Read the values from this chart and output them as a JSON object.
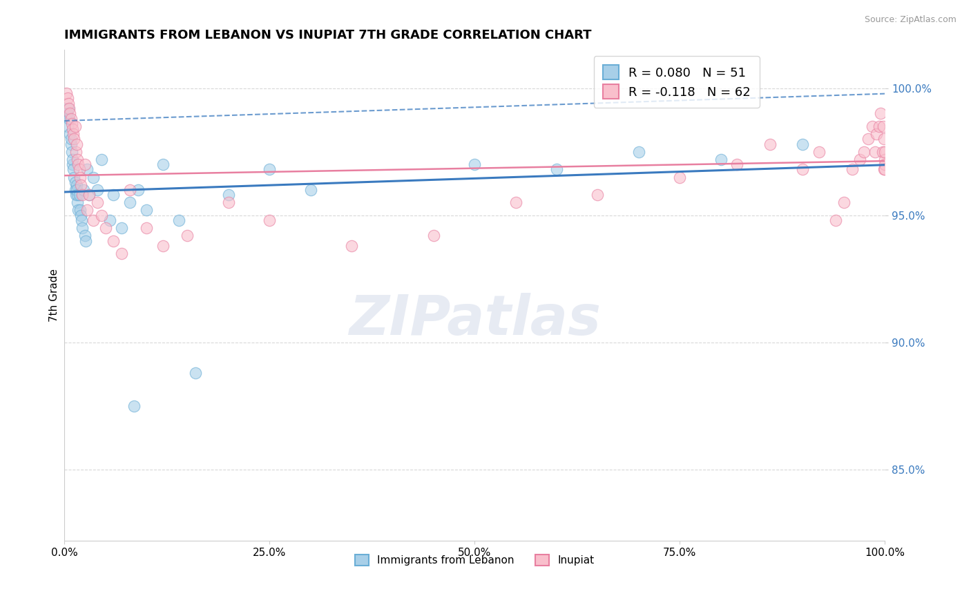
{
  "title": "IMMIGRANTS FROM LEBANON VS INUPIAT 7TH GRADE CORRELATION CHART",
  "source": "Source: ZipAtlas.com",
  "ylabel": "7th Grade",
  "xlim": [
    0.0,
    1.0
  ],
  "ylim": [
    0.822,
    1.015
  ],
  "yticks": [
    0.85,
    0.9,
    0.95,
    1.0
  ],
  "color_blue": "#a8cfe8",
  "color_blue_edge": "#6aaed6",
  "color_blue_line": "#3a7abf",
  "color_pink": "#f9bfcc",
  "color_pink_edge": "#e87fa0",
  "color_pink_line": "#e87fa0",
  "legend_label_blue": "Immigrants from Lebanon",
  "legend_label_pink": "Inupiat",
  "r_blue": "0.080",
  "n_blue": "51",
  "r_pink": "-0.118",
  "n_pink": "62",
  "watermark_text": "ZIPatlas",
  "blue_x": [
    0.003,
    0.004,
    0.005,
    0.006,
    0.007,
    0.008,
    0.008,
    0.009,
    0.01,
    0.01,
    0.011,
    0.012,
    0.013,
    0.013,
    0.014,
    0.015,
    0.015,
    0.016,
    0.016,
    0.017,
    0.018,
    0.019,
    0.02,
    0.021,
    0.022,
    0.023,
    0.025,
    0.026,
    0.028,
    0.03,
    0.035,
    0.04,
    0.045,
    0.055,
    0.06,
    0.07,
    0.08,
    0.085,
    0.09,
    0.1,
    0.12,
    0.14,
    0.16,
    0.2,
    0.25,
    0.3,
    0.5,
    0.6,
    0.7,
    0.8,
    0.9
  ],
  "blue_y": [
    0.99,
    0.985,
    0.992,
    0.988,
    0.982,
    0.978,
    0.98,
    0.975,
    0.97,
    0.972,
    0.968,
    0.965,
    0.963,
    0.96,
    0.958,
    0.962,
    0.96,
    0.955,
    0.958,
    0.952,
    0.958,
    0.952,
    0.95,
    0.948,
    0.945,
    0.96,
    0.942,
    0.94,
    0.968,
    0.958,
    0.965,
    0.96,
    0.972,
    0.948,
    0.958,
    0.945,
    0.955,
    0.875,
    0.96,
    0.952,
    0.97,
    0.948,
    0.888,
    0.958,
    0.968,
    0.96,
    0.97,
    0.968,
    0.975,
    0.972,
    0.978
  ],
  "pink_x": [
    0.002,
    0.004,
    0.005,
    0.006,
    0.007,
    0.008,
    0.009,
    0.01,
    0.011,
    0.012,
    0.013,
    0.014,
    0.015,
    0.016,
    0.017,
    0.018,
    0.019,
    0.02,
    0.022,
    0.025,
    0.028,
    0.03,
    0.035,
    0.04,
    0.045,
    0.05,
    0.06,
    0.07,
    0.08,
    0.1,
    0.12,
    0.15,
    0.2,
    0.25,
    0.35,
    0.45,
    0.55,
    0.65,
    0.75,
    0.82,
    0.86,
    0.9,
    0.92,
    0.94,
    0.95,
    0.96,
    0.97,
    0.975,
    0.98,
    0.985,
    0.988,
    0.99,
    0.993,
    0.995,
    0.997,
    0.998,
    0.999,
    0.9993,
    0.9996,
    0.9998,
    1.0,
    1.0
  ],
  "pink_y": [
    0.998,
    0.996,
    0.994,
    0.992,
    0.99,
    0.988,
    0.986,
    0.984,
    0.982,
    0.98,
    0.985,
    0.975,
    0.978,
    0.972,
    0.97,
    0.968,
    0.965,
    0.962,
    0.958,
    0.97,
    0.952,
    0.958,
    0.948,
    0.955,
    0.95,
    0.945,
    0.94,
    0.935,
    0.96,
    0.945,
    0.938,
    0.942,
    0.955,
    0.948,
    0.938,
    0.942,
    0.955,
    0.958,
    0.965,
    0.97,
    0.978,
    0.968,
    0.975,
    0.948,
    0.955,
    0.968,
    0.972,
    0.975,
    0.98,
    0.985,
    0.975,
    0.982,
    0.985,
    0.99,
    0.975,
    0.985,
    0.968,
    0.98,
    0.972,
    0.975,
    0.97,
    0.968
  ]
}
